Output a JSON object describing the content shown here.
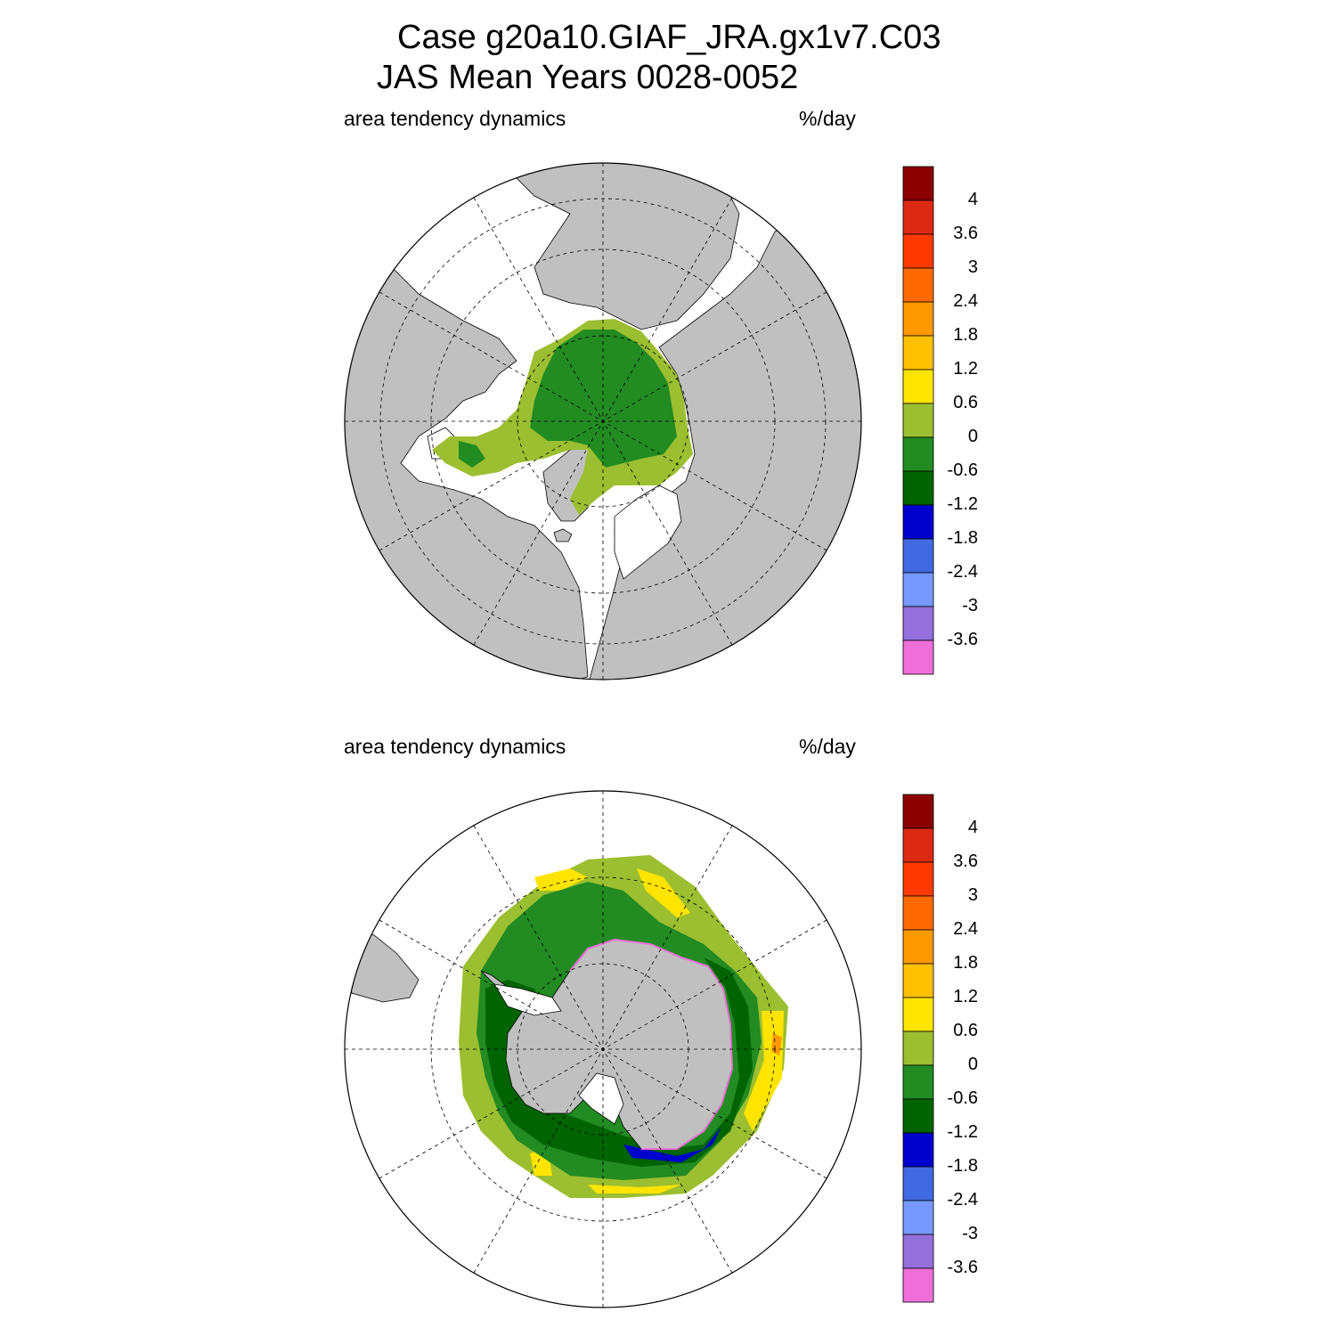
{
  "header": {
    "title_line1": "Case g20a10.GIAF_JRA.gx1v7.C03",
    "title_line2": "JAS Mean   Years 0028-0052"
  },
  "panels": [
    {
      "id": "arctic",
      "hemisphere": "north",
      "left_label": "area tendency dynamics",
      "right_label": "%/day"
    },
    {
      "id": "antarctic",
      "hemisphere": "south",
      "left_label": "area tendency dynamics",
      "right_label": "%/day"
    }
  ],
  "colorbar": {
    "tick_labels": [
      "4",
      "3.6",
      "3",
      "2.4",
      "1.8",
      "1.2",
      "0.6",
      "0",
      "-0.6",
      "-1.2",
      "-1.8",
      "-2.4",
      "-3",
      "-3.6"
    ],
    "colors": [
      "#8b0000",
      "#dc2a12",
      "#ff3a00",
      "#ff6a00",
      "#ff9900",
      "#ffc000",
      "#ffe400",
      "#9bbf30",
      "#228b22",
      "#006400",
      "#0000cd",
      "#4169e1",
      "#7799ff",
      "#9370db",
      "#ee6fd8"
    ]
  },
  "map_colors": {
    "land": "#c0c0c0",
    "ocean": "#ffffff",
    "grid": "#000000"
  }
}
